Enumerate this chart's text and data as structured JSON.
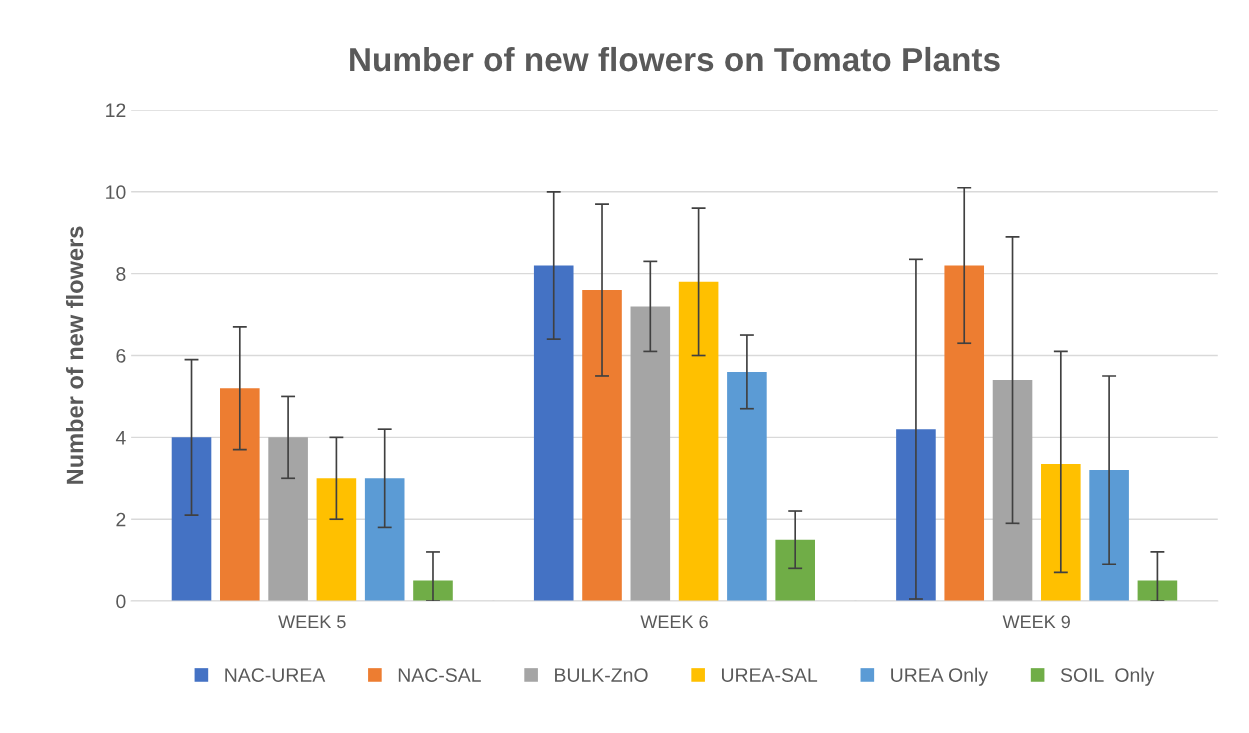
{
  "chart_data": {
    "type": "bar",
    "title": "Number of new flowers on Tomato Plants",
    "ylabel": "Number of new flowers",
    "categories": [
      "WEEK 5",
      "WEEK 6",
      "WEEK 9"
    ],
    "series": [
      {
        "name": "NAC-UREA",
        "color": "#4472c4",
        "values": [
          4.0,
          8.2,
          4.2
        ],
        "errors": [
          [
            2.1,
            5.9
          ],
          [
            6.4,
            10.0
          ],
          [
            0.05,
            8.35
          ]
        ]
      },
      {
        "name": "NAC-SAL",
        "color": "#ed7d31",
        "values": [
          5.2,
          7.6,
          8.2
        ],
        "errors": [
          [
            3.7,
            6.7
          ],
          [
            5.5,
            9.7
          ],
          [
            6.3,
            10.1
          ]
        ]
      },
      {
        "name": "BULK-ZnO",
        "color": "#a5a5a5",
        "values": [
          4.0,
          7.2,
          5.4
        ],
        "errors": [
          [
            3.0,
            5.0
          ],
          [
            6.1,
            8.3
          ],
          [
            1.9,
            8.9
          ]
        ]
      },
      {
        "name": "UREA-SAL",
        "color": "#ffc000",
        "values": [
          3.0,
          7.8,
          3.35
        ],
        "errors": [
          [
            2.0,
            4.0
          ],
          [
            6.0,
            9.6
          ],
          [
            0.7,
            6.1
          ]
        ]
      },
      {
        "name": "UREA Only",
        "color": "#5b9bd5",
        "values": [
          3.0,
          5.6,
          3.2
        ],
        "errors": [
          [
            1.8,
            4.2
          ],
          [
            4.7,
            6.5
          ],
          [
            0.9,
            5.5
          ]
        ]
      },
      {
        "name": "SOIL  Only",
        "color": "#70ad47",
        "values": [
          0.5,
          1.5,
          0.5
        ],
        "errors": [
          [
            0.0,
            1.2
          ],
          [
            0.8,
            2.2
          ],
          [
            0.0,
            1.2
          ]
        ]
      }
    ],
    "ylim": [
      0,
      12
    ],
    "yticks": [
      0,
      2,
      4,
      6,
      8,
      10,
      12
    ],
    "grid": "y",
    "legend": "bottom"
  }
}
